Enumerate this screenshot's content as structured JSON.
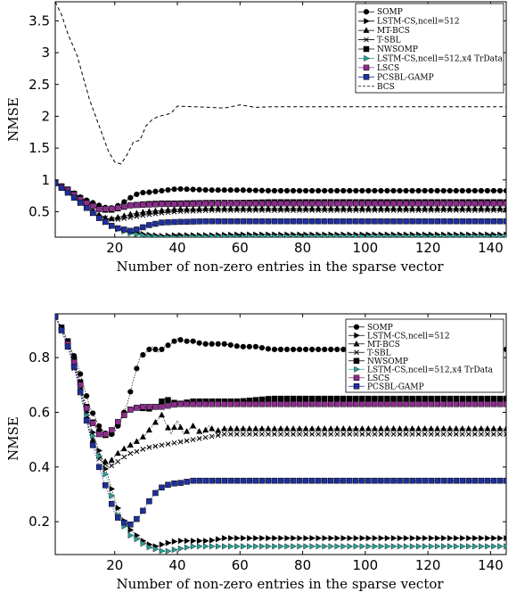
{
  "chart_data": [
    {
      "type": "line",
      "xlabel": "Number of non-zero entries in the sparse vector",
      "ylabel": "NMSE",
      "xlim": [
        1,
        145
      ],
      "ylim": [
        0.1,
        3.8
      ],
      "xticks": [
        20,
        40,
        60,
        80,
        100,
        120,
        140
      ],
      "yticks": [
        0.5,
        1,
        1.5,
        2,
        2.5,
        3,
        3.5
      ],
      "ytick_labels": [
        "0.5",
        "1",
        "1.5",
        "2",
        "2.5",
        "3",
        "3.5"
      ],
      "legend_position": "top-right",
      "grid": false,
      "series": [
        {
          "name": "SOMP",
          "marker": "circle",
          "color": "#000000",
          "x": [
            1,
            5,
            10,
            15,
            18,
            20,
            22,
            25,
            28,
            30,
            35,
            40,
            45,
            50,
            60,
            70,
            80,
            100,
            120,
            145
          ],
          "y": [
            0.95,
            0.85,
            0.7,
            0.6,
            0.55,
            0.57,
            0.62,
            0.72,
            0.8,
            0.8,
            0.83,
            0.86,
            0.85,
            0.84,
            0.84,
            0.83,
            0.83,
            0.83,
            0.83,
            0.83
          ]
        },
        {
          "name": "LSTM-CS,ncell=512",
          "marker": "triangle-right",
          "color": "#000000",
          "x": [
            1,
            5,
            10,
            15,
            20,
            25,
            30,
            35,
            40,
            50,
            60,
            70,
            80,
            100,
            120,
            145
          ],
          "y": [
            0.95,
            0.8,
            0.6,
            0.4,
            0.25,
            0.18,
            0.14,
            0.12,
            0.13,
            0.13,
            0.14,
            0.14,
            0.14,
            0.14,
            0.14,
            0.14
          ]
        },
        {
          "name": "MT-BCS",
          "marker": "triangle-up",
          "color": "#000000",
          "x": [
            1,
            5,
            10,
            15,
            18,
            20,
            25,
            30,
            35,
            40,
            45,
            50,
            60,
            70,
            80,
            100,
            120,
            145
          ],
          "y": [
            0.95,
            0.82,
            0.62,
            0.45,
            0.38,
            0.4,
            0.46,
            0.5,
            0.52,
            0.54,
            0.54,
            0.55,
            0.55,
            0.55,
            0.55,
            0.55,
            0.55,
            0.55
          ]
        },
        {
          "name": "T-SBL",
          "marker": "cross",
          "color": "#000000",
          "x": [
            1,
            5,
            10,
            15,
            20,
            25,
            30,
            35,
            40,
            45,
            50,
            60,
            70,
            80,
            100,
            120,
            145
          ],
          "y": [
            0.95,
            0.8,
            0.6,
            0.42,
            0.37,
            0.41,
            0.45,
            0.48,
            0.5,
            0.51,
            0.52,
            0.52,
            0.52,
            0.52,
            0.52,
            0.52,
            0.52
          ]
        },
        {
          "name": "NWSOMP",
          "marker": "square",
          "color": "#000000",
          "x": [
            1,
            5,
            10,
            15,
            18,
            20,
            25,
            30,
            35,
            40,
            50,
            60,
            70,
            80,
            100,
            120,
            145
          ],
          "y": [
            0.95,
            0.85,
            0.68,
            0.55,
            0.52,
            0.54,
            0.6,
            0.62,
            0.63,
            0.63,
            0.64,
            0.64,
            0.65,
            0.65,
            0.65,
            0.65,
            0.65
          ]
        },
        {
          "name": "LSTM-CS,ncell=512,x4 TrData",
          "marker": "triangle-right",
          "color": "#2aa198",
          "x": [
            1,
            5,
            10,
            15,
            20,
            25,
            30,
            35,
            40,
            50,
            60,
            70,
            80,
            100,
            120,
            145
          ],
          "y": [
            0.95,
            0.8,
            0.6,
            0.4,
            0.24,
            0.16,
            0.12,
            0.1,
            0.1,
            0.11,
            0.11,
            0.11,
            0.11,
            0.11,
            0.11,
            0.11
          ]
        },
        {
          "name": "LSCS",
          "marker": "square",
          "color": "#8e2c8e",
          "x": [
            1,
            5,
            10,
            15,
            20,
            25,
            30,
            35,
            40,
            50,
            60,
            70,
            80,
            100,
            120,
            145
          ],
          "y": [
            0.95,
            0.84,
            0.66,
            0.54,
            0.55,
            0.6,
            0.61,
            0.62,
            0.62,
            0.63,
            0.63,
            0.63,
            0.63,
            0.63,
            0.63,
            0.63
          ]
        },
        {
          "name": "PCSBL-GAMP",
          "marker": "square",
          "color": "#1f2f9e",
          "x": [
            1,
            5,
            10,
            15,
            20,
            25,
            28,
            30,
            35,
            40,
            50,
            60,
            80,
            100,
            120,
            145
          ],
          "y": [
            0.95,
            0.8,
            0.6,
            0.4,
            0.25,
            0.2,
            0.23,
            0.28,
            0.33,
            0.34,
            0.35,
            0.35,
            0.35,
            0.35,
            0.35,
            0.35
          ]
        },
        {
          "name": "BCS",
          "marker": "none",
          "color": "#000000",
          "dashed": true,
          "x": [
            1,
            3,
            5,
            8,
            10,
            12,
            15,
            18,
            20,
            22,
            24,
            26,
            28,
            30,
            32,
            34,
            36,
            38,
            40,
            45,
            50,
            55,
            60,
            65,
            70,
            80,
            100,
            120,
            145
          ],
          "y": [
            3.8,
            3.6,
            3.3,
            2.95,
            2.6,
            2.25,
            1.85,
            1.45,
            1.28,
            1.25,
            1.4,
            1.6,
            1.62,
            1.85,
            1.95,
            2.0,
            2.02,
            2.05,
            2.16,
            2.15,
            2.14,
            2.13,
            2.18,
            2.14,
            2.15,
            2.15,
            2.15,
            2.15,
            2.15
          ]
        }
      ]
    },
    {
      "type": "line",
      "xlabel": "Number of non-zero entries in the sparse vector",
      "ylabel": "NMSE",
      "xlim": [
        1,
        145
      ],
      "ylim": [
        0.08,
        0.96
      ],
      "xticks": [
        20,
        40,
        60,
        80,
        100,
        120,
        140
      ],
      "yticks": [
        0.2,
        0.4,
        0.6,
        0.8
      ],
      "ytick_labels": [
        "0.2",
        "0.4",
        "0.6",
        "0.8"
      ],
      "legend_position": "top-right",
      "grid": false,
      "series": [
        {
          "name": "SOMP",
          "marker": "circle",
          "color": "#000000",
          "x": [
            1,
            3,
            5,
            8,
            10,
            12,
            15,
            18,
            20,
            22,
            24,
            26,
            28,
            30,
            32,
            34,
            36,
            38,
            40,
            42,
            45,
            48,
            50,
            55,
            60,
            65,
            70,
            80,
            100,
            120,
            145
          ],
          "y": [
            0.95,
            0.91,
            0.86,
            0.78,
            0.7,
            0.62,
            0.55,
            0.51,
            0.53,
            0.57,
            0.63,
            0.72,
            0.8,
            0.82,
            0.84,
            0.82,
            0.84,
            0.85,
            0.87,
            0.86,
            0.86,
            0.85,
            0.85,
            0.85,
            0.84,
            0.84,
            0.83,
            0.83,
            0.83,
            0.83,
            0.83
          ]
        },
        {
          "name": "LSTM-CS,ncell=512",
          "marker": "triangle-right",
          "color": "#000000",
          "x": [
            1,
            3,
            5,
            8,
            10,
            12,
            15,
            18,
            20,
            22,
            25,
            28,
            30,
            33,
            36,
            40,
            45,
            50,
            55,
            60,
            70,
            80,
            100,
            120,
            145
          ],
          "y": [
            0.95,
            0.9,
            0.84,
            0.74,
            0.64,
            0.56,
            0.46,
            0.36,
            0.28,
            0.22,
            0.17,
            0.14,
            0.12,
            0.11,
            0.12,
            0.13,
            0.13,
            0.13,
            0.14,
            0.14,
            0.14,
            0.14,
            0.14,
            0.14,
            0.14
          ]
        },
        {
          "name": "MT-BCS",
          "marker": "triangle-up",
          "color": "#000000",
          "x": [
            1,
            3,
            5,
            8,
            10,
            12,
            15,
            18,
            20,
            22,
            25,
            28,
            30,
            32,
            35,
            38,
            40,
            42,
            45,
            48,
            50,
            52,
            55,
            58,
            60,
            65,
            70,
            80,
            100,
            120,
            145
          ],
          "y": [
            0.95,
            0.9,
            0.84,
            0.74,
            0.64,
            0.53,
            0.44,
            0.41,
            0.44,
            0.46,
            0.48,
            0.5,
            0.52,
            0.55,
            0.59,
            0.52,
            0.57,
            0.52,
            0.55,
            0.52,
            0.55,
            0.53,
            0.54,
            0.54,
            0.54,
            0.54,
            0.54,
            0.54,
            0.54,
            0.54,
            0.54
          ]
        },
        {
          "name": "T-SBL",
          "marker": "cross",
          "color": "#000000",
          "x": [
            1,
            3,
            5,
            8,
            10,
            12,
            15,
            18,
            20,
            22,
            25,
            28,
            30,
            35,
            40,
            45,
            50,
            55,
            60,
            70,
            80,
            100,
            120,
            145
          ],
          "y": [
            0.95,
            0.9,
            0.84,
            0.72,
            0.62,
            0.52,
            0.43,
            0.4,
            0.41,
            0.43,
            0.45,
            0.46,
            0.47,
            0.48,
            0.49,
            0.5,
            0.51,
            0.52,
            0.52,
            0.52,
            0.52,
            0.52,
            0.52,
            0.52
          ]
        },
        {
          "name": "NWSOMP",
          "marker": "square",
          "color": "#000000",
          "x": [
            1,
            3,
            5,
            8,
            10,
            12,
            15,
            18,
            20,
            22,
            25,
            28,
            30,
            33,
            36,
            40,
            45,
            50,
            55,
            60,
            70,
            80,
            100,
            120,
            145
          ],
          "y": [
            0.95,
            0.91,
            0.86,
            0.76,
            0.66,
            0.58,
            0.53,
            0.51,
            0.54,
            0.58,
            0.61,
            0.62,
            0.61,
            0.62,
            0.65,
            0.63,
            0.64,
            0.64,
            0.64,
            0.64,
            0.65,
            0.65,
            0.65,
            0.65,
            0.65
          ]
        },
        {
          "name": "LSTM-CS,ncell=512,x4 TrData",
          "marker": "triangle-right",
          "color": "#2aa198",
          "x": [
            1,
            3,
            5,
            8,
            10,
            12,
            15,
            18,
            20,
            22,
            25,
            28,
            30,
            33,
            36,
            40,
            45,
            50,
            55,
            60,
            70,
            80,
            100,
            120,
            145
          ],
          "y": [
            0.95,
            0.9,
            0.84,
            0.73,
            0.63,
            0.55,
            0.44,
            0.34,
            0.25,
            0.2,
            0.15,
            0.13,
            0.11,
            0.1,
            0.09,
            0.1,
            0.11,
            0.11,
            0.11,
            0.11,
            0.11,
            0.11,
            0.11,
            0.11,
            0.11
          ]
        },
        {
          "name": "LSCS",
          "marker": "square",
          "color": "#8e2c8e",
          "x": [
            1,
            3,
            5,
            8,
            10,
            12,
            15,
            18,
            20,
            22,
            25,
            28,
            30,
            35,
            40,
            45,
            50,
            55,
            60,
            70,
            80,
            100,
            120,
            145
          ],
          "y": [
            0.95,
            0.9,
            0.85,
            0.75,
            0.65,
            0.58,
            0.52,
            0.52,
            0.55,
            0.58,
            0.61,
            0.62,
            0.62,
            0.62,
            0.63,
            0.63,
            0.63,
            0.63,
            0.63,
            0.63,
            0.63,
            0.63,
            0.63,
            0.63
          ]
        },
        {
          "name": "PCSBL-GAMP",
          "marker": "square",
          "color": "#1f2f9e",
          "x": [
            1,
            3,
            5,
            8,
            10,
            12,
            15,
            18,
            20,
            22,
            25,
            28,
            30,
            32,
            34,
            36,
            38,
            40,
            45,
            50,
            60,
            80,
            100,
            120,
            145
          ],
          "y": [
            0.95,
            0.9,
            0.84,
            0.73,
            0.62,
            0.52,
            0.4,
            0.3,
            0.23,
            0.2,
            0.19,
            0.22,
            0.26,
            0.29,
            0.32,
            0.33,
            0.34,
            0.34,
            0.35,
            0.35,
            0.35,
            0.35,
            0.35,
            0.35,
            0.35
          ]
        }
      ]
    }
  ]
}
